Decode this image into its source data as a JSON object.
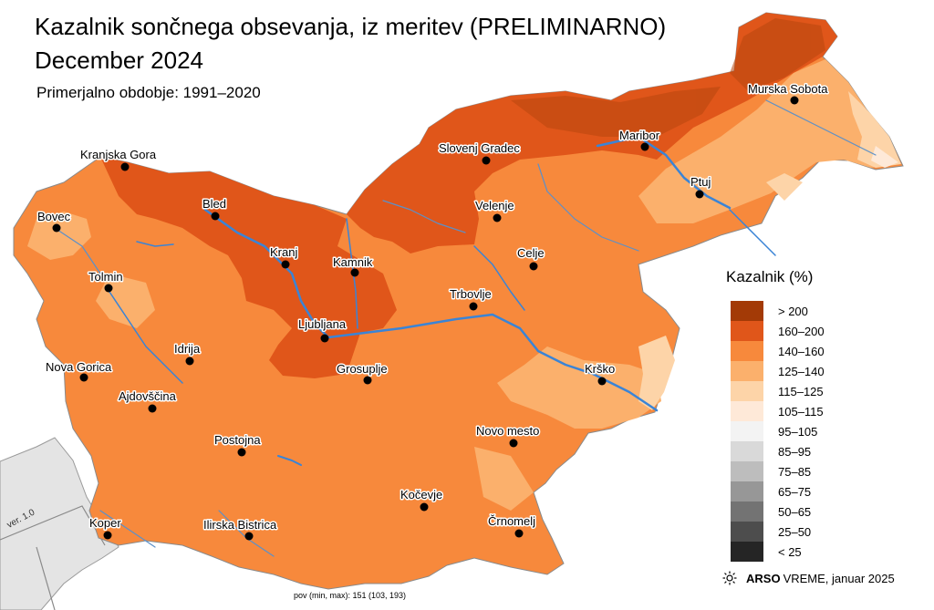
{
  "title_line1": "Kazalnik sončnega obsevanja, iz meritev (PRELIMINARNO)",
  "title_line2": "December 2024",
  "subtitle": "Primerjalno obdobje: 1991–2020",
  "legend": {
    "title": "Kazalnik (%)",
    "items": [
      {
        "label": "> 200",
        "color": "#a33a06"
      },
      {
        "label": "160–200",
        "color": "#e0561a"
      },
      {
        "label": "140–160",
        "color": "#f7893c"
      },
      {
        "label": "125–140",
        "color": "#fbb06c"
      },
      {
        "label": "115–125",
        "color": "#fdd4a8"
      },
      {
        "label": "105–115",
        "color": "#fee9d8"
      },
      {
        "label": "95–105",
        "color": "#f3f3f3"
      },
      {
        "label": "85–95",
        "color": "#d9d9d9"
      },
      {
        "label": "75–85",
        "color": "#bdbdbd"
      },
      {
        "label": "65–75",
        "color": "#979797"
      },
      {
        "label": "50–65",
        "color": "#737373"
      },
      {
        "label": "25–50",
        "color": "#4d4d4d"
      },
      {
        "label": "< 25",
        "color": "#252525"
      }
    ]
  },
  "stats": "pov (min, max): 151 (103, 193)",
  "credit": {
    "brand": "ARSO",
    "brand2": "VREME",
    "date": ", januar 2025"
  },
  "version": "ver. 1.0",
  "cities": [
    "Kranjska Gora",
    "Bovec",
    "Bled",
    "Kranj",
    "Kamnik",
    "Tolmin",
    "Ljubljana",
    "Idrija",
    "Nova Gorica",
    "Ajdovščina",
    "Postojna",
    "Koper",
    "Ilirska Bistrica",
    "Grosuplje",
    "Kočevje",
    "Novo mesto",
    "Črnomelj",
    "Krško",
    "Trbovlje",
    "Celje",
    "Velenje",
    "Slovenj Gradec",
    "Maribor",
    "Ptuj",
    "Murska Sobota"
  ],
  "colors": {
    "river": "#3a84d6",
    "border": "#7a7a7a",
    "neighbor": "#e4e4e4"
  }
}
